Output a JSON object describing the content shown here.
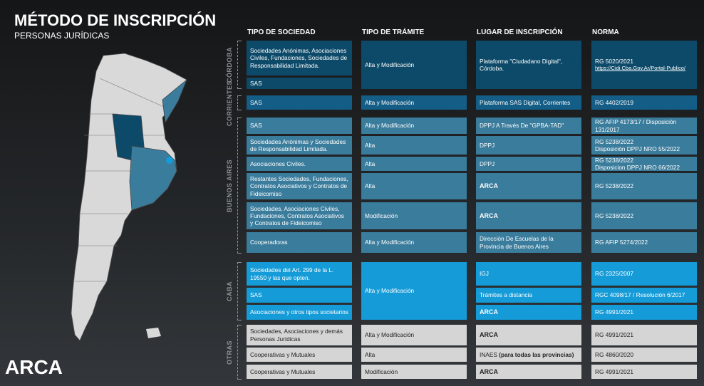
{
  "header": {
    "title": "MÉTODO DE INSCRIPCIÓN",
    "subtitle": "PERSONAS JURÍDICAS"
  },
  "columns": [
    "TIPO DE SOCIEDAD",
    "TIPO DE TRÁMITE",
    "LUGAR DE INSCRIPCIÓN",
    "NORMA"
  ],
  "groups": [
    {
      "label": "CÓRDOBA",
      "rows": [
        {
          "sociedad": "Sociedades Anónimas, Asociaciones Civiles, Fundaciones, Sociedades de Responsabilidad Limitada.",
          "tramite": "Alta y Modificación",
          "lugar": "Plataforma \"Ciudadano Digital\", Córdoba.",
          "norma": [
            "RG 5020/2021"
          ],
          "link": "https://Cidi.Cba.Gov.Ar/Portal-Publico/"
        },
        {
          "sociedad": "SAS"
        }
      ]
    },
    {
      "label": "CORRIENTES",
      "rows": [
        {
          "sociedad": "SAS",
          "tramite": "Alta y Modificación",
          "lugar": "Plataforma SAS Digital, Corrientes",
          "norma": [
            "RG 4402/2019"
          ]
        }
      ]
    },
    {
      "label": "BUENOS AIRES",
      "rows": [
        {
          "sociedad": "SAS",
          "tramite": "Alta y Modificación",
          "lugar": "DPPJ A Través De \"GPBA-TAD\"",
          "norma": [
            "RG AFIP 4173/17 / Disposición 131/2017"
          ]
        },
        {
          "sociedad": "Sociedades Anónimas y Sociedades de Responsabilidad Limitada.",
          "tramite": "Alta",
          "lugar": "DPPJ",
          "norma": [
            "RG 5238/2022",
            "Disposición DPPJ NRO 55/2022"
          ]
        },
        {
          "sociedad": "Asociaciones Civiles.",
          "tramite": "Alta",
          "lugar": "DPPJ",
          "norma": [
            "RG 5238/2022",
            "Disposicion DPPJ NRO 66/2022"
          ]
        },
        {
          "sociedad": "Restantes Sociedades, Fundaciones, Contratos Asociativos y Contratos de Fideicomiso",
          "tramite": "Alta",
          "lugar": "ARCA",
          "norma": [
            "RG 5238/2022"
          ]
        },
        {
          "sociedad": "Sociedades, Asociaciones Civiles, Fundaciones, Contratos Asociativos y Contratos de Fideicomiso",
          "tramite": "Modificación",
          "lugar": "ARCA",
          "norma": [
            "RG 5238/2022"
          ]
        },
        {
          "sociedad": "Cooperadoras",
          "tramite": "Alta y Modificación",
          "lugar": "Dirección De Escuelas de la Provincia de Buenos Aires",
          "norma": [
            "RG AFIP 5274/2022"
          ]
        }
      ]
    },
    {
      "label": "CABA",
      "rows": [
        {
          "sociedad": "Sociedades del Art. 299 de la L. 19550 y las que opten.",
          "tramite": "Alta y Modificación",
          "lugar": "IGJ",
          "norma": [
            "RG 2325/2007"
          ]
        },
        {
          "sociedad": "SAS",
          "lugar": "Trámites a distancia",
          "norma": [
            "RGC 4098/17 / Resolución 6/2017"
          ]
        },
        {
          "sociedad": "Asociaciones y otros tipos societarios",
          "lugar": "ARCA",
          "norma": [
            "RG 4991/2021"
          ]
        }
      ]
    },
    {
      "label": "OTRAS",
      "rows": [
        {
          "sociedad": "Sociedades, Asociaciones y demás Personas Jurídicas",
          "tramite": "Alta y Modificación",
          "lugar": "ARCA",
          "norma": [
            "RG 4991/2021"
          ]
        },
        {
          "sociedad": "Cooperativas y Mutuales",
          "tramite": "Alta",
          "lugar": [
            "INAES ",
            "(para todas las provincias)"
          ],
          "norma": [
            "RG 4860/2020"
          ]
        },
        {
          "sociedad": "Cooperativas y Mutuales",
          "tramite": "Modificación",
          "lugar": "ARCA",
          "norma": [
            "RG 4991/2021"
          ]
        }
      ]
    }
  ],
  "logo": "ARCA"
}
